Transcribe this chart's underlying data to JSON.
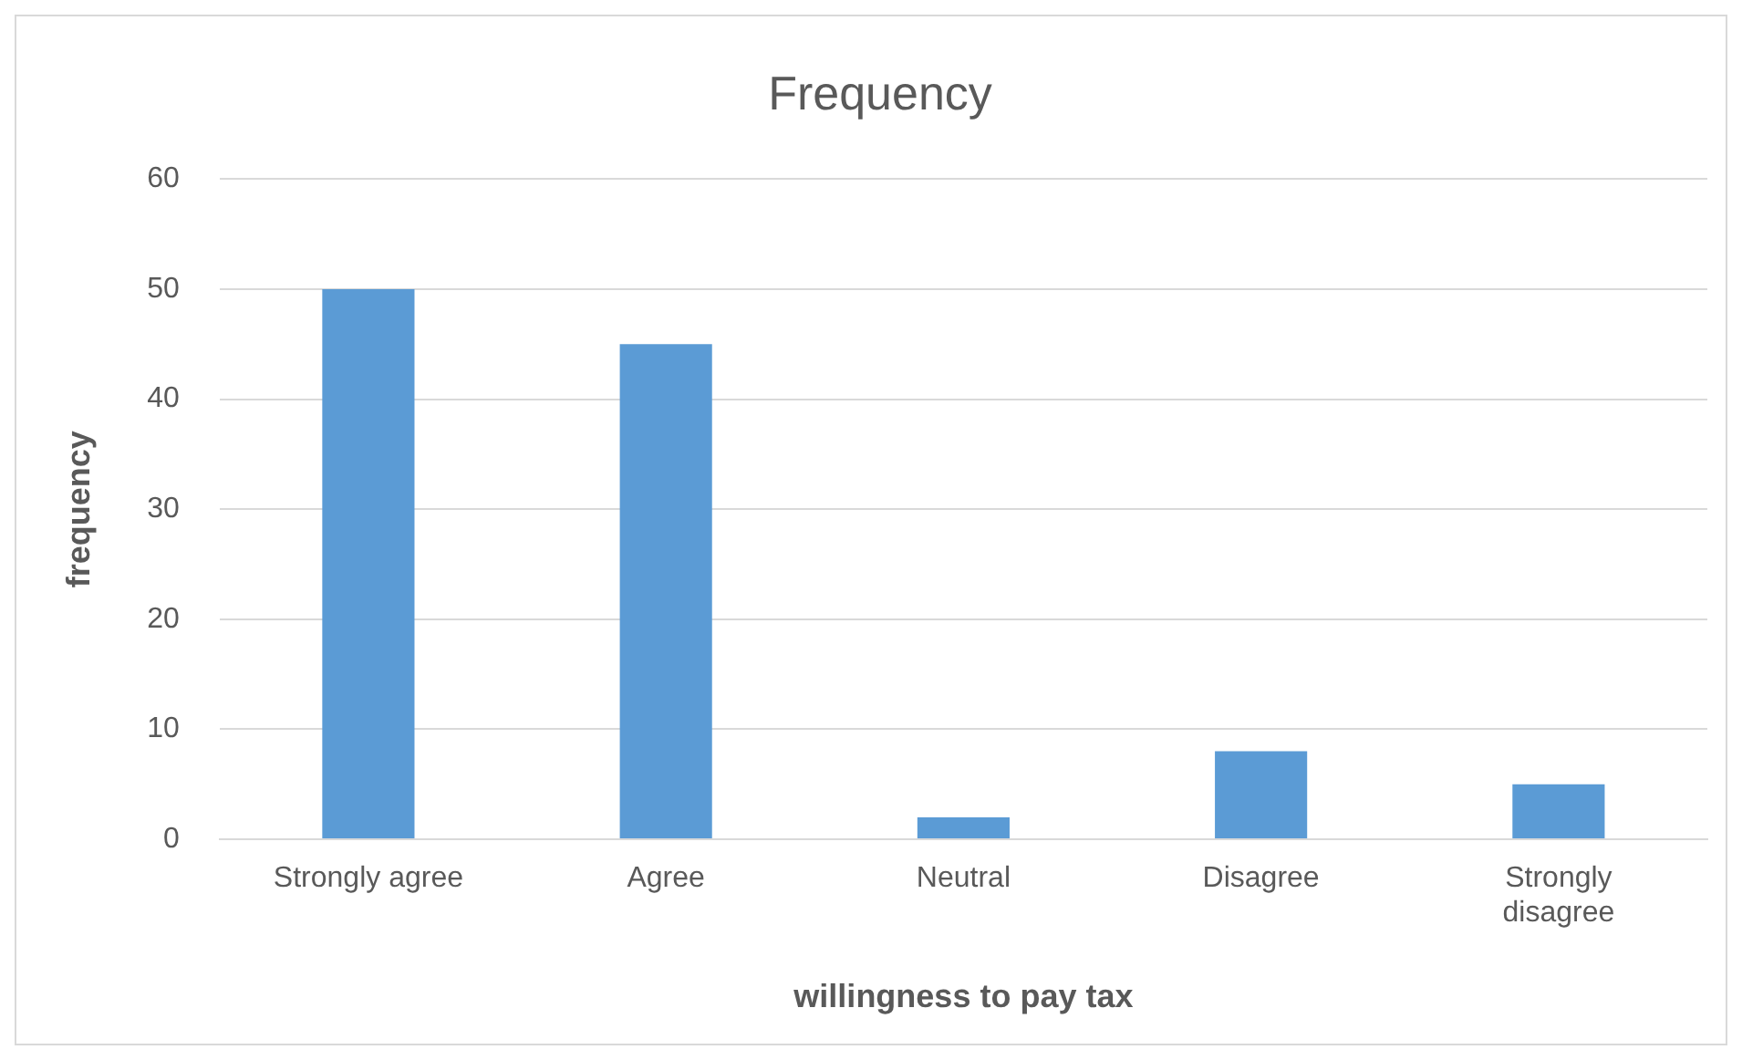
{
  "chart_data": {
    "type": "bar",
    "title": "Frequency",
    "xlabel": "willingness to pay tax",
    "ylabel": "frequency",
    "categories": [
      "Strongly agree",
      "Agree",
      "Neutral",
      "Disagree",
      "Strongly disagree"
    ],
    "values": [
      50,
      45,
      2,
      8,
      5
    ],
    "color": "#5b9bd5",
    "ylim": [
      0,
      60
    ],
    "yticks": [
      0,
      10,
      20,
      30,
      40,
      50,
      60
    ],
    "grid": "y",
    "legend": false
  }
}
